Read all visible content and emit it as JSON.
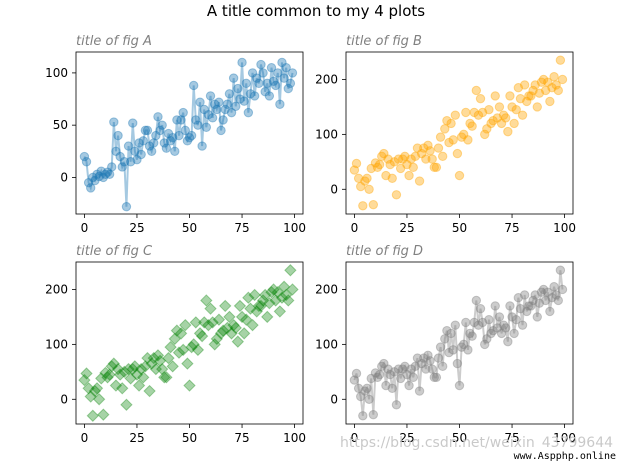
{
  "figure": {
    "suptitle": "A title common to my 4 plots",
    "watermark": "https://blog.csdn.net/weixin_43799644",
    "site_label": "www.Aspphp.online"
  },
  "chart_data": [
    {
      "type": "line",
      "title": "title of fig A",
      "color": "#1f77b4",
      "marker": "circle",
      "connected": true,
      "xlim": [
        -4,
        104
      ],
      "ylim": [
        -35,
        120
      ],
      "xticks": [
        0,
        25,
        50,
        75,
        100
      ],
      "yticks": [
        0,
        50,
        100
      ],
      "x": [
        0,
        1,
        2,
        3,
        4,
        5,
        6,
        7,
        8,
        9,
        10,
        11,
        12,
        13,
        14,
        15,
        16,
        17,
        18,
        19,
        20,
        21,
        22,
        23,
        24,
        25,
        26,
        27,
        28,
        29,
        30,
        31,
        32,
        33,
        34,
        35,
        36,
        37,
        38,
        39,
        40,
        41,
        42,
        43,
        44,
        45,
        46,
        47,
        48,
        49,
        50,
        51,
        52,
        53,
        54,
        55,
        56,
        57,
        58,
        59,
        60,
        61,
        62,
        63,
        64,
        65,
        66,
        67,
        68,
        69,
        70,
        71,
        72,
        73,
        74,
        75,
        76,
        77,
        78,
        79,
        80,
        81,
        82,
        83,
        84,
        85,
        86,
        87,
        88,
        89,
        90,
        91,
        92,
        93,
        94,
        95,
        96,
        97,
        98,
        99
      ],
      "y": [
        20,
        15,
        -5,
        -10,
        0,
        -3,
        3,
        1,
        6,
        0,
        3,
        5,
        3,
        10,
        53,
        25,
        40,
        20,
        10,
        15,
        -28,
        30,
        15,
        52,
        25,
        17,
        33,
        22,
        35,
        45,
        45,
        30,
        25,
        33,
        40,
        58,
        45,
        50,
        33,
        28,
        42,
        35,
        38,
        25,
        55,
        40,
        55,
        62,
        45,
        35,
        38,
        40,
        88,
        55,
        50,
        72,
        30,
        65,
        48,
        60,
        78,
        57,
        70,
        65,
        72,
        45,
        55,
        65,
        70,
        80,
        62,
        95,
        68,
        85,
        75,
        110,
        73,
        90,
        62,
        80,
        100,
        78,
        95,
        90,
        108,
        100,
        82,
        90,
        78,
        105,
        92,
        88,
        100,
        70,
        110,
        95,
        105,
        85,
        90,
        100
      ]
    },
    {
      "type": "scatter",
      "title": "title of fig B",
      "color": "#ffa500",
      "marker": "circle",
      "connected": false,
      "xlim": [
        -4,
        104
      ],
      "ylim": [
        -45,
        250
      ],
      "xticks": [
        0,
        25,
        50,
        75,
        100
      ],
      "yticks": [
        0,
        100,
        200
      ],
      "x": [
        0,
        1,
        2,
        3,
        4,
        5,
        6,
        7,
        8,
        9,
        10,
        11,
        12,
        13,
        14,
        15,
        16,
        17,
        18,
        19,
        20,
        21,
        22,
        23,
        24,
        25,
        26,
        27,
        28,
        29,
        30,
        31,
        32,
        33,
        34,
        35,
        36,
        37,
        38,
        39,
        40,
        41,
        42,
        43,
        44,
        45,
        46,
        47,
        48,
        49,
        50,
        51,
        52,
        53,
        54,
        55,
        56,
        57,
        58,
        59,
        60,
        61,
        62,
        63,
        64,
        65,
        66,
        67,
        68,
        69,
        70,
        71,
        72,
        73,
        74,
        75,
        76,
        77,
        78,
        79,
        80,
        81,
        82,
        83,
        84,
        85,
        86,
        87,
        88,
        89,
        90,
        91,
        92,
        93,
        94,
        95,
        96,
        97,
        98,
        99
      ],
      "y": [
        35,
        47,
        20,
        5,
        -30,
        15,
        20,
        0,
        38,
        -28,
        48,
        40,
        45,
        60,
        65,
        25,
        55,
        45,
        20,
        50,
        -10,
        55,
        38,
        55,
        60,
        45,
        25,
        55,
        40,
        60,
        75,
        15,
        65,
        75,
        55,
        80,
        70,
        55,
        40,
        40,
        75,
        95,
        60,
        110,
        125,
        85,
        120,
        90,
        135,
        65,
        25,
        95,
        100,
        140,
        90,
        120,
        115,
        140,
        180,
        135,
        165,
        140,
        100,
        110,
        145,
        120,
        125,
        170,
        130,
        150,
        120,
        135,
        130,
        105,
        170,
        150,
        120,
        145,
        185,
        165,
        135,
        190,
        160,
        170,
        170,
        180,
        190,
        150,
        175,
        195,
        200,
        180,
        195,
        160,
        185,
        205,
        190,
        180,
        235,
        200
      ]
    },
    {
      "type": "scatter",
      "title": "title of fig C",
      "color": "#008000",
      "marker": "diamond",
      "connected": false,
      "xlim": [
        -4,
        104
      ],
      "ylim": [
        -45,
        250
      ],
      "xticks": [
        0,
        25,
        50,
        75,
        100
      ],
      "yticks": [
        0,
        100,
        200
      ],
      "x": [
        0,
        1,
        2,
        3,
        4,
        5,
        6,
        7,
        8,
        9,
        10,
        11,
        12,
        13,
        14,
        15,
        16,
        17,
        18,
        19,
        20,
        21,
        22,
        23,
        24,
        25,
        26,
        27,
        28,
        29,
        30,
        31,
        32,
        33,
        34,
        35,
        36,
        37,
        38,
        39,
        40,
        41,
        42,
        43,
        44,
        45,
        46,
        47,
        48,
        49,
        50,
        51,
        52,
        53,
        54,
        55,
        56,
        57,
        58,
        59,
        60,
        61,
        62,
        63,
        64,
        65,
        66,
        67,
        68,
        69,
        70,
        71,
        72,
        73,
        74,
        75,
        76,
        77,
        78,
        79,
        80,
        81,
        82,
        83,
        84,
        85,
        86,
        87,
        88,
        89,
        90,
        91,
        92,
        93,
        94,
        95,
        96,
        97,
        98,
        99
      ],
      "y": [
        35,
        47,
        20,
        5,
        -30,
        15,
        20,
        0,
        38,
        -28,
        48,
        40,
        45,
        60,
        65,
        25,
        55,
        45,
        20,
        50,
        -10,
        55,
        38,
        55,
        60,
        45,
        25,
        55,
        40,
        60,
        75,
        15,
        65,
        75,
        55,
        80,
        70,
        55,
        40,
        40,
        75,
        95,
        60,
        110,
        125,
        85,
        120,
        90,
        135,
        65,
        25,
        95,
        100,
        140,
        90,
        120,
        115,
        140,
        180,
        135,
        165,
        140,
        100,
        110,
        145,
        120,
        125,
        170,
        130,
        150,
        120,
        135,
        130,
        105,
        170,
        150,
        120,
        145,
        185,
        165,
        135,
        190,
        160,
        170,
        170,
        180,
        190,
        150,
        175,
        195,
        200,
        180,
        195,
        160,
        185,
        205,
        190,
        180,
        235,
        200
      ]
    },
    {
      "type": "line",
      "title": "title of fig D",
      "color": "#808080",
      "marker": "circle",
      "connected": true,
      "xlim": [
        -4,
        104
      ],
      "ylim": [
        -45,
        250
      ],
      "xticks": [
        0,
        25,
        50,
        75,
        100
      ],
      "yticks": [
        0,
        100,
        200
      ],
      "x": [
        0,
        1,
        2,
        3,
        4,
        5,
        6,
        7,
        8,
        9,
        10,
        11,
        12,
        13,
        14,
        15,
        16,
        17,
        18,
        19,
        20,
        21,
        22,
        23,
        24,
        25,
        26,
        27,
        28,
        29,
        30,
        31,
        32,
        33,
        34,
        35,
        36,
        37,
        38,
        39,
        40,
        41,
        42,
        43,
        44,
        45,
        46,
        47,
        48,
        49,
        50,
        51,
        52,
        53,
        54,
        55,
        56,
        57,
        58,
        59,
        60,
        61,
        62,
        63,
        64,
        65,
        66,
        67,
        68,
        69,
        70,
        71,
        72,
        73,
        74,
        75,
        76,
        77,
        78,
        79,
        80,
        81,
        82,
        83,
        84,
        85,
        86,
        87,
        88,
        89,
        90,
        91,
        92,
        93,
        94,
        95,
        96,
        97,
        98,
        99
      ],
      "y": [
        35,
        47,
        20,
        5,
        -30,
        15,
        20,
        0,
        38,
        -28,
        48,
        40,
        45,
        60,
        65,
        25,
        55,
        45,
        20,
        50,
        -10,
        55,
        38,
        55,
        60,
        45,
        25,
        55,
        40,
        60,
        75,
        15,
        65,
        75,
        55,
        80,
        70,
        55,
        40,
        40,
        75,
        95,
        60,
        110,
        125,
        85,
        120,
        90,
        135,
        65,
        25,
        95,
        100,
        140,
        90,
        120,
        115,
        140,
        180,
        135,
        165,
        140,
        100,
        110,
        145,
        120,
        125,
        170,
        130,
        150,
        120,
        135,
        130,
        105,
        170,
        150,
        120,
        145,
        185,
        165,
        135,
        190,
        160,
        170,
        170,
        180,
        190,
        150,
        175,
        195,
        200,
        180,
        195,
        160,
        185,
        205,
        190,
        180,
        235,
        200
      ]
    }
  ]
}
